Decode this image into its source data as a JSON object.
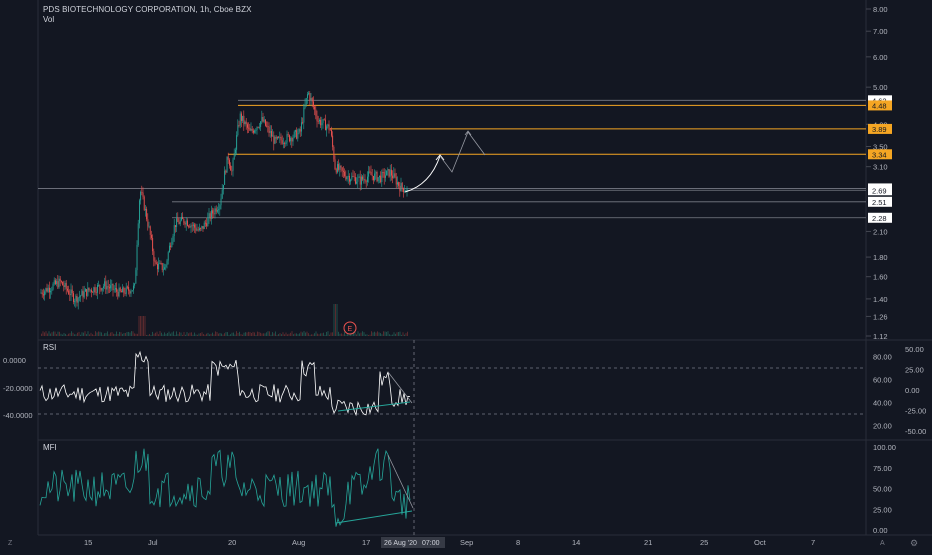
{
  "header": {
    "symbol_line": "PDS BIOTECHNOLOGY CORPORATION, 1h, Cboe BZX",
    "volume_label": "Vol"
  },
  "theme": {
    "background": "#131722",
    "grid": "#2a2e39",
    "up": "#26a69a",
    "down": "#ef5350",
    "line_white": "#ffffff",
    "level_orange": "#f5a623",
    "level_gray": "#787b86",
    "mfi_color": "#26a69a",
    "rsi_color": "#ffffff"
  },
  "chart_data": [
    {
      "type": "candlestick",
      "title": "PDS BIOTECHNOLOGY CORPORATION, 1h, Cboe BZX",
      "y_scale": "log",
      "ylim": [
        1.12,
        8.0
      ],
      "y_ticks": [
        "8.00",
        "7.00",
        "6.00",
        "5.00",
        "4.00",
        "3.50",
        "3.10",
        "2.10",
        "1.80",
        "1.60",
        "1.40",
        "1.26",
        "1.12"
      ],
      "x_ticks": [
        "15",
        "Jul",
        "20",
        "Aug",
        "17",
        "26 Aug '20",
        "Sep",
        "8",
        "14",
        "21",
        "25",
        "Oct",
        "7"
      ],
      "price_levels": [
        {
          "label": "4.62",
          "value": 4.62,
          "style": "white"
        },
        {
          "label": "4.48",
          "value": 4.48,
          "style": "orange"
        },
        {
          "label": "3.89",
          "value": 3.89,
          "style": "orange"
        },
        {
          "label": "3.34",
          "value": 3.34,
          "style": "orange"
        },
        {
          "label": "2.72",
          "value": 2.72,
          "style": "white"
        },
        {
          "label": "2.69",
          "value": 2.69,
          "style": "white"
        },
        {
          "label": "2.51",
          "value": 2.51,
          "style": "white"
        },
        {
          "label": "2.28",
          "value": 2.28,
          "style": "white"
        }
      ],
      "events": [
        {
          "label": "E",
          "x": "Aug 10"
        }
      ]
    },
    {
      "type": "line",
      "name": "RSI",
      "left_ticks": [
        "0.0000",
        "-20.0000",
        "-40.0000"
      ],
      "right_ticks": [
        "80.00",
        "60.00",
        "40.00",
        "20.00"
      ],
      "right_ticks2": [
        "50.00",
        "25.00",
        "0.00",
        "-25.00",
        "-50.00"
      ],
      "bands": [
        70,
        30
      ]
    },
    {
      "type": "line",
      "name": "MFI",
      "right_ticks": [
        "100.00",
        "75.00",
        "50.00",
        "25.00",
        "0.00"
      ]
    }
  ],
  "crosshair": {
    "date_label": "26 Aug '20",
    "time_label": "07:00"
  },
  "corner_buttons": {
    "left": "Z",
    "right": "A",
    "gear": "⚙"
  }
}
